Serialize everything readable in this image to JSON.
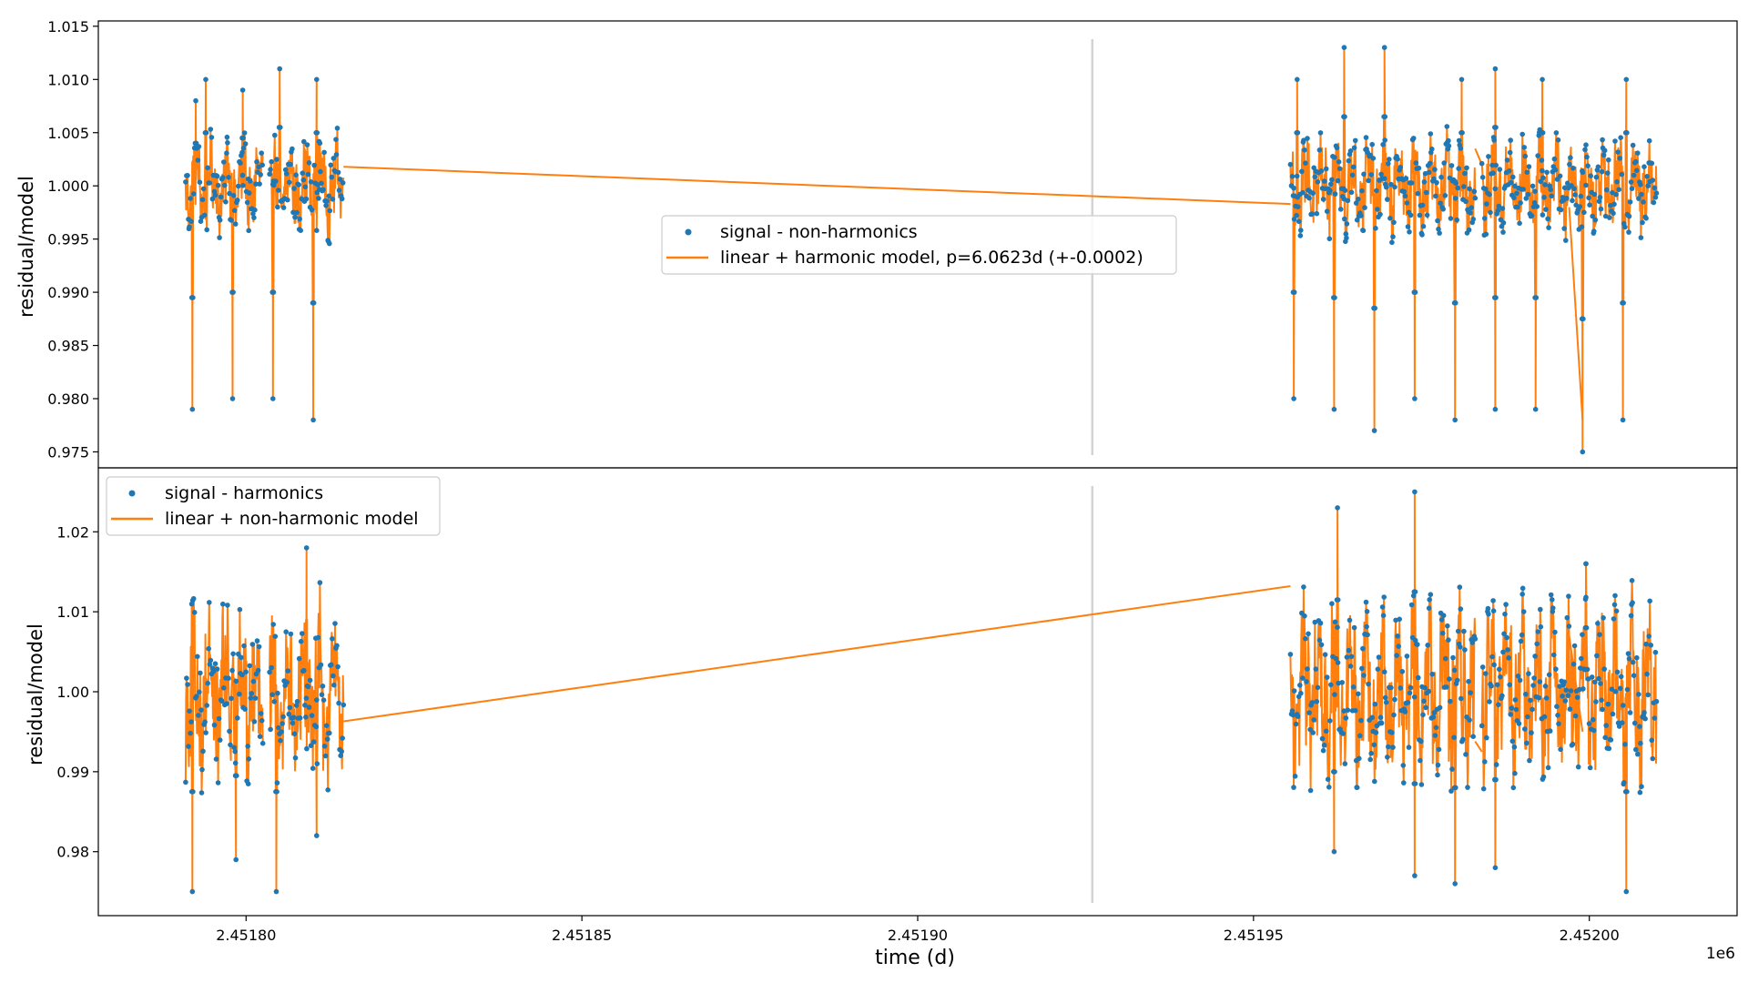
{
  "chart_data": [
    {
      "type": "scatter",
      "panel": "top",
      "xlabel": "",
      "ylabel": "residual/model",
      "xlim": [
        2451778,
        2452022
      ],
      "ylim": [
        0.9735,
        1.0155
      ],
      "yticks": [
        0.975,
        0.98,
        0.985,
        0.99,
        0.995,
        1.0,
        1.005,
        1.01,
        1.015
      ],
      "ytick_labels": [
        "0.975",
        "0.980",
        "0.985",
        "0.990",
        "0.995",
        "1.000",
        "1.005",
        "1.010",
        "1.015"
      ],
      "legend_position": "center",
      "vline": {
        "x": 2451926,
        "color": "#d3d3d3"
      },
      "series": [
        {
          "name": "signal - non-harmonics",
          "kind": "points",
          "color": "#1f77b4",
          "segments": [
            {
              "x_start": 2451791.0,
              "x_end": 2451802.5
            },
            {
              "x_start": 2451803.5,
              "x_end": 2451814.5
            },
            {
              "x_start": 2451955.5,
              "x_end": 2451983.0
            },
            {
              "x_start": 2451984.0,
              "x_end": 2451999.5
            },
            {
              "x_start": 2451999.5,
              "x_end": 2452010.0
            }
          ],
          "baseline": 1.0,
          "scatter_amplitude": 0.004,
          "dips": [
            {
              "x": 2451792.0,
              "y": 0.979
            },
            {
              "x": 2451798.0,
              "y": 0.98
            },
            {
              "x": 2451804.0,
              "y": 0.98
            },
            {
              "x": 2451810.0,
              "y": 0.978
            },
            {
              "x": 2451956.0,
              "y": 0.98
            },
            {
              "x": 2451962.0,
              "y": 0.979
            },
            {
              "x": 2451968.0,
              "y": 0.977
            },
            {
              "x": 2451974.0,
              "y": 0.98
            },
            {
              "x": 2451980.0,
              "y": 0.978
            },
            {
              "x": 2451986.0,
              "y": 0.979
            },
            {
              "x": 2451992.0,
              "y": 0.979
            },
            {
              "x": 2451999.0,
              "y": 0.975
            },
            {
              "x": 2452005.0,
              "y": 0.978
            }
          ],
          "peaks": [
            {
              "x": 2451792.5,
              "y": 1.008
            },
            {
              "x": 2451794.0,
              "y": 1.01
            },
            {
              "x": 2451799.5,
              "y": 1.009
            },
            {
              "x": 2451805.0,
              "y": 1.011
            },
            {
              "x": 2451810.5,
              "y": 1.01
            },
            {
              "x": 2451956.5,
              "y": 1.01
            },
            {
              "x": 2451963.5,
              "y": 1.013
            },
            {
              "x": 2451969.5,
              "y": 1.013
            },
            {
              "x": 2451981.0,
              "y": 1.01
            },
            {
              "x": 2451986.0,
              "y": 1.011
            },
            {
              "x": 2451993.0,
              "y": 1.01
            },
            {
              "x": 2452005.5,
              "y": 1.01
            }
          ]
        },
        {
          "name": "linear + harmonic model, p=6.0623d (+-0.0002)",
          "kind": "line",
          "color": "#ff7f0e",
          "bridges": [
            {
              "x": [
                2451814.5,
                2451955.5
              ],
              "y": [
                1.0018,
                0.9983
              ]
            },
            {
              "x": [
                2451983.0,
                2451984.0
              ],
              "y": [
                1.0035,
                1.002
              ]
            },
            {
              "x": [
                2451997.0,
                2451999.0
              ],
              "y": [
                0.998,
                0.978
              ]
            }
          ]
        }
      ]
    },
    {
      "type": "scatter",
      "panel": "bottom",
      "xlabel": "time (d)",
      "x_offset_label": "1e6",
      "ylabel": "residual/model",
      "xlim": [
        2451778,
        2452022
      ],
      "ylim": [
        0.972,
        1.028
      ],
      "xticks": [
        2451800,
        2451850,
        2451900,
        2451950,
        2452000
      ],
      "xtick_labels": [
        "2.45180",
        "2.45185",
        "2.45190",
        "2.45195",
        "2.45200"
      ],
      "yticks": [
        0.98,
        0.99,
        1.0,
        1.01,
        1.02
      ],
      "ytick_labels": [
        "0.98",
        "0.99",
        "1.00",
        "1.01",
        "1.02"
      ],
      "legend_position": "upper left",
      "vline": {
        "x": 2451926,
        "color": "#d3d3d3"
      },
      "series": [
        {
          "name": "signal - harmonics",
          "kind": "points",
          "color": "#1f77b4",
          "segments": [
            {
              "x_start": 2451791.0,
              "x_end": 2451802.5
            },
            {
              "x_start": 2451803.5,
              "x_end": 2451814.5
            },
            {
              "x_start": 2451955.5,
              "x_end": 2451983.0
            },
            {
              "x_start": 2451984.0,
              "x_end": 2451999.5
            },
            {
              "x_start": 2451999.5,
              "x_end": 2452010.0
            }
          ],
          "baseline": 1.0,
          "scatter_amplitude": 0.01,
          "dips": [
            {
              "x": 2451792.0,
              "y": 0.975
            },
            {
              "x": 2451798.5,
              "y": 0.979
            },
            {
              "x": 2451804.5,
              "y": 0.975
            },
            {
              "x": 2451810.5,
              "y": 0.982
            },
            {
              "x": 2451962.0,
              "y": 0.98
            },
            {
              "x": 2451974.0,
              "y": 0.977
            },
            {
              "x": 2451980.0,
              "y": 0.976
            },
            {
              "x": 2451986.0,
              "y": 0.978
            },
            {
              "x": 2452005.5,
              "y": 0.975
            }
          ],
          "peaks": [
            {
              "x": 2451809.0,
              "y": 1.018
            },
            {
              "x": 2451962.5,
              "y": 1.023
            },
            {
              "x": 2451974.0,
              "y": 1.025
            },
            {
              "x": 2451999.5,
              "y": 1.016
            }
          ]
        },
        {
          "name": "linear + non-harmonic model",
          "kind": "line",
          "color": "#ff7f0e",
          "bridges": [
            {
              "x": [
                2451814.5,
                2451955.5
              ],
              "y": [
                0.9963,
                1.0132
              ]
            },
            {
              "x": [
                2451983.0,
                2451984.0
              ],
              "y": [
                0.9938,
                0.9925
              ]
            },
            {
              "x": [
                2451997.0,
                2451999.0
              ],
              "y": [
                1.007,
                0.995
              ]
            }
          ]
        }
      ]
    }
  ]
}
